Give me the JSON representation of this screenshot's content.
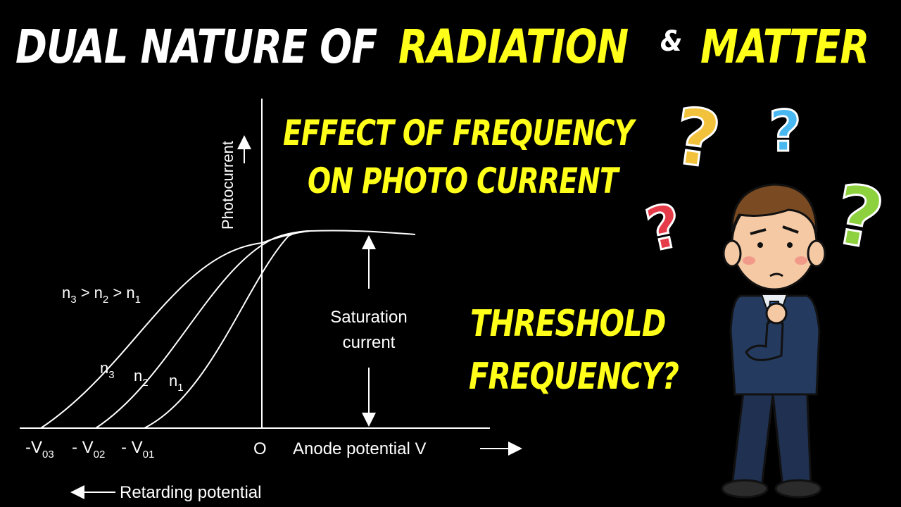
{
  "title": {
    "part1": "DUAL NATURE OF",
    "part2": "RADIATION",
    "amp": "&",
    "part3": "MATTER"
  },
  "subtitle": {
    "line1": "EFFECT OF FREQUENCY",
    "line2": "ON PHOTO CURRENT"
  },
  "question": {
    "line1": "THRESHOLD",
    "line2": "FREQUENCY?"
  },
  "diagram": {
    "y_axis_label": "Photocurrent",
    "origin_label": "O",
    "anode_label": "Anode potential V",
    "retarding_label": "Retarding potential",
    "saturation_line1": "Saturation",
    "saturation_line2": "current",
    "order": {
      "n3": "n",
      "s3": "3",
      "gt1": " > n",
      "s2": "2",
      "gt2": " > n",
      "s1": "1"
    },
    "curves": [
      {
        "name": "n",
        "sub": "3"
      },
      {
        "name": "n",
        "sub": "2"
      },
      {
        "name": "n",
        "sub": "1"
      }
    ],
    "stopping": [
      {
        "prefix": "-V",
        "sub": "03"
      },
      {
        "prefix": "- V",
        "sub": "02"
      },
      {
        "prefix": "- V",
        "sub": "01"
      }
    ]
  },
  "colors": {
    "background": "#000000",
    "headline_white": "#ffffff",
    "headline_yellow": "#ffff1a",
    "line": "#ffffff"
  },
  "decorations": {
    "question_marks": [
      "yellow-question-icon",
      "blue-question-icon",
      "green-question-icon",
      "red-question-icon"
    ],
    "character": "thinking-man-illustration"
  }
}
